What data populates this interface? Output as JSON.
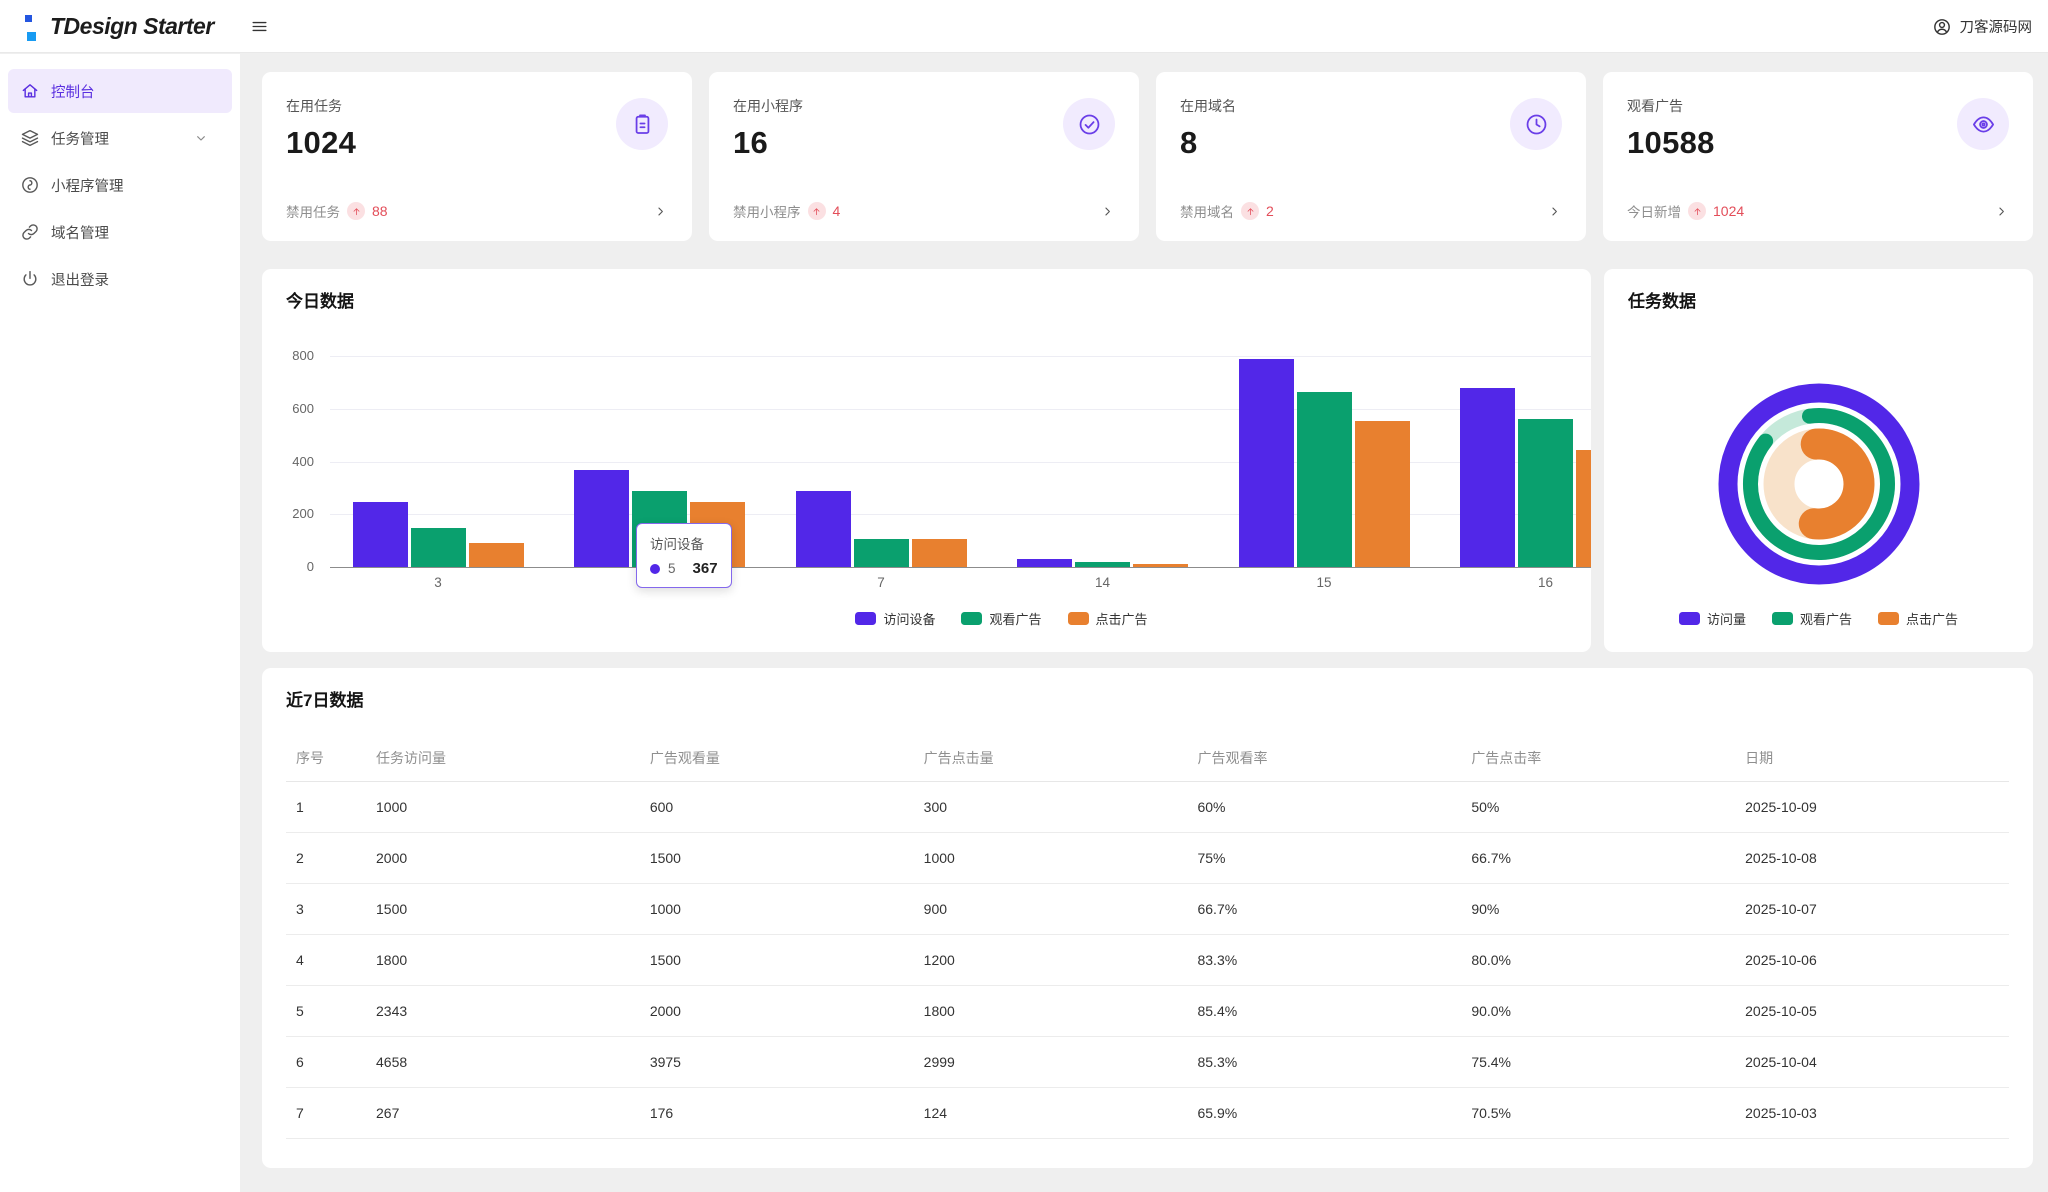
{
  "header": {
    "logo_text": "TDesign Starter",
    "user_name": "刀客源码网"
  },
  "sidebar": {
    "items": [
      {
        "label": "控制台",
        "icon": "home",
        "active": true
      },
      {
        "label": "任务管理",
        "icon": "layers",
        "expandable": true
      },
      {
        "label": "小程序管理",
        "icon": "miniprogram"
      },
      {
        "label": "域名管理",
        "icon": "link"
      },
      {
        "label": "退出登录",
        "icon": "power"
      }
    ]
  },
  "stat_cards": [
    {
      "label": "在用任务",
      "value": "1024",
      "icon": "clipboard",
      "footer_label": "禁用任务",
      "footer_value": "88"
    },
    {
      "label": "在用小程序",
      "value": "16",
      "icon": "check-circle",
      "footer_label": "禁用小程序",
      "footer_value": "4"
    },
    {
      "label": "在用域名",
      "value": "8",
      "icon": "clock",
      "footer_label": "禁用域名",
      "footer_value": "2"
    },
    {
      "label": "观看广告",
      "value": "10588",
      "icon": "eye",
      "footer_label": "今日新增",
      "footer_value": "1024"
    }
  ],
  "chart_data": [
    {
      "type": "bar",
      "title": "今日数据",
      "categories": [
        "3",
        "5",
        "7",
        "14",
        "15",
        "16"
      ],
      "series": [
        {
          "name": "访问设备",
          "color": "#5227e8",
          "values": [
            245,
            367,
            290,
            30,
            790,
            680
          ]
        },
        {
          "name": "观看广告",
          "color": "#0aa06e",
          "values": [
            148,
            290,
            105,
            18,
            665,
            560
          ]
        },
        {
          "name": "点击广告",
          "color": "#e8802f",
          "values": [
            90,
            245,
            105,
            12,
            555,
            445
          ]
        }
      ],
      "xlabel": "",
      "ylabel": "",
      "ylim": [
        0,
        800
      ],
      "yticks": [
        0,
        200,
        400,
        600,
        800
      ],
      "grid": true,
      "legend_position": "bottom",
      "tooltip": {
        "series": "访问设备",
        "category": "5",
        "value": "367"
      }
    },
    {
      "type": "donut-nested",
      "title": "任务数据",
      "rings": [
        {
          "name": "访问量",
          "color": "#5227e8",
          "rest_color": "#5227e8",
          "percent": 100,
          "start_deg": 0
        },
        {
          "name": "观看广告",
          "color": "#0aa06e",
          "rest_color": "#c5e9da",
          "percent": 88,
          "start_deg": -8
        },
        {
          "name": "点击广告",
          "color": "#e8802f",
          "rest_color": "#f8e2ca",
          "percent": 53,
          "start_deg": -4
        }
      ],
      "legend": [
        "访问量",
        "观看广告",
        "点击广告"
      ],
      "legend_position": "bottom"
    }
  ],
  "table": {
    "title": "近7日数据",
    "columns": [
      "序号",
      "任务访问量",
      "广告观看量",
      "广告点击量",
      "广告观看率",
      "广告点击率",
      "日期"
    ],
    "rows": [
      [
        "1",
        "1000",
        "600",
        "300",
        "60%",
        "50%",
        "2025-10-09"
      ],
      [
        "2",
        "2000",
        "1500",
        "1000",
        "75%",
        "66.7%",
        "2025-10-08"
      ],
      [
        "3",
        "1500",
        "1000",
        "900",
        "66.7%",
        "90%",
        "2025-10-07"
      ],
      [
        "4",
        "1800",
        "1500",
        "1200",
        "83.3%",
        "80.0%",
        "2025-10-06"
      ],
      [
        "5",
        "2343",
        "2000",
        "1800",
        "85.4%",
        "90.0%",
        "2025-10-05"
      ],
      [
        "6",
        "4658",
        "3975",
        "2999",
        "85.3%",
        "75.4%",
        "2025-10-04"
      ],
      [
        "7",
        "267",
        "176",
        "124",
        "65.9%",
        "70.5%",
        "2025-10-03"
      ]
    ]
  },
  "colors": {
    "brand_purple": "#5a2fe0",
    "chart_purple": "#5227e8",
    "chart_green": "#0aa06e",
    "chart_orange": "#e8802f",
    "danger_red": "#e34d59",
    "danger_badge_bg": "#fbe0e2",
    "icon_circle_bg": "#f1ebfe",
    "active_item_bg": "#f0eafd",
    "logo_blue_dark": "#2456e0",
    "logo_blue_light": "#189bf2"
  }
}
